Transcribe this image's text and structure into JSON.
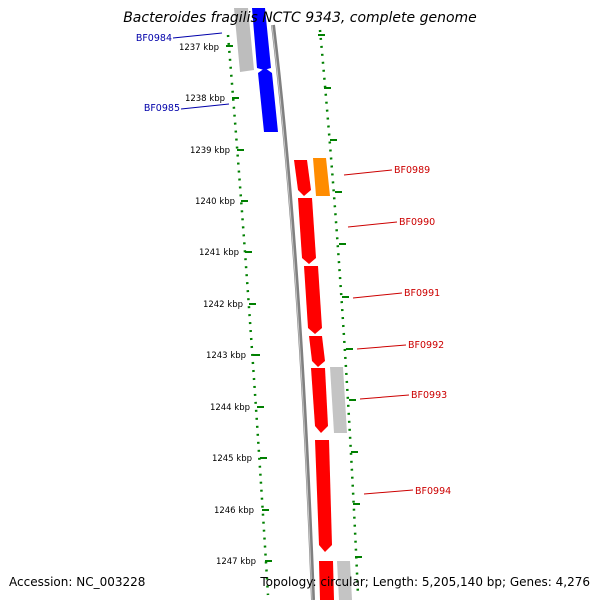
{
  "title": "Bacteroides fragilis NCTC 9343, complete genome",
  "footer": {
    "accession": "Accession: NC_003228",
    "topology": "Topology: circular; Length: 5,205,140 bp; Genes: 4,276"
  },
  "colors": {
    "forward_strand": "#0000ff",
    "reverse_strand": "#ff0000",
    "highlight": "#ff8c00",
    "other": "#c0c0c0",
    "backbone": "#808080",
    "ticks": "#008000"
  },
  "ruler": {
    "unit": "kbp",
    "ticks": [
      {
        "label": "1237 kbp",
        "kbp": 1237
      },
      {
        "label": "1238 kbp",
        "kbp": 1238
      },
      {
        "label": "1239 kbp",
        "kbp": 1239
      },
      {
        "label": "1240 kbp",
        "kbp": 1240
      },
      {
        "label": "1241 kbp",
        "kbp": 1241
      },
      {
        "label": "1242 kbp",
        "kbp": 1242
      },
      {
        "label": "1243 kbp",
        "kbp": 1243
      },
      {
        "label": "1244 kbp",
        "kbp": 1244
      },
      {
        "label": "1245 kbp",
        "kbp": 1245
      },
      {
        "label": "1246 kbp",
        "kbp": 1246
      },
      {
        "label": "1247 kbp",
        "kbp": 1247
      }
    ]
  },
  "genes": [
    {
      "name": "BF0984",
      "color_key": "forward_strand",
      "label_color": "#0000aa",
      "side": "left"
    },
    {
      "name": "BF0985",
      "color_key": "forward_strand",
      "label_color": "#0000aa",
      "side": "left"
    },
    {
      "name": "BF0989",
      "color_key": "reverse_strand",
      "label_color": "#cc0000",
      "side": "right"
    },
    {
      "name": "BF0990",
      "color_key": "reverse_strand",
      "label_color": "#cc0000",
      "side": "right"
    },
    {
      "name": "BF0991",
      "color_key": "reverse_strand",
      "label_color": "#cc0000",
      "side": "right"
    },
    {
      "name": "BF0992",
      "color_key": "reverse_strand",
      "label_color": "#cc0000",
      "side": "right"
    },
    {
      "name": "BF0993",
      "color_key": "reverse_strand",
      "label_color": "#cc0000",
      "side": "right"
    },
    {
      "name": "BF0994",
      "color_key": "reverse_strand",
      "label_color": "#cc0000",
      "side": "right"
    }
  ]
}
